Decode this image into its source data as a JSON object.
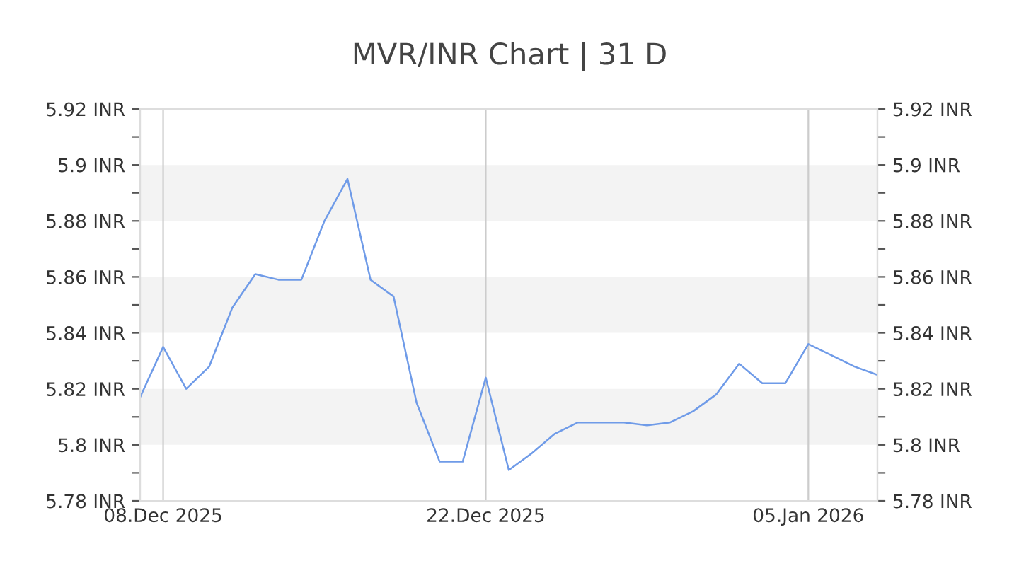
{
  "chart_data": {
    "type": "line",
    "title": "MVR/INR Chart | 31 D",
    "x": [
      "2025-12-07",
      "2025-12-08",
      "2025-12-09",
      "2025-12-10",
      "2025-12-11",
      "2025-12-12",
      "2025-12-13",
      "2025-12-14",
      "2025-12-15",
      "2025-12-16",
      "2025-12-17",
      "2025-12-18",
      "2025-12-19",
      "2025-12-20",
      "2025-12-21",
      "2025-12-22",
      "2025-12-23",
      "2025-12-24",
      "2025-12-25",
      "2025-12-26",
      "2025-12-27",
      "2025-12-28",
      "2025-12-29",
      "2025-12-30",
      "2025-12-31",
      "2026-01-01",
      "2026-01-02",
      "2026-01-03",
      "2026-01-04",
      "2026-01-05",
      "2026-01-06",
      "2026-01-07",
      "2026-01-08"
    ],
    "series": [
      {
        "color": "#6f9be8",
        "values": [
          5.817,
          5.835,
          5.82,
          5.828,
          5.849,
          5.861,
          5.859,
          5.859,
          5.88,
          5.895,
          5.859,
          5.853,
          5.815,
          5.794,
          5.794,
          5.824,
          5.791,
          5.797,
          5.804,
          5.808,
          5.808,
          5.808,
          5.807,
          5.808,
          5.812,
          5.818,
          5.829,
          5.822,
          5.822,
          5.836,
          5.832,
          5.828,
          5.825
        ]
      }
    ],
    "xlim": [
      "2025-12-07",
      "2026-01-08"
    ],
    "xticks": [
      {
        "value": "2025-12-08",
        "label": "08.Dec 2025"
      },
      {
        "value": "2025-12-22",
        "label": "22.Dec 2025"
      },
      {
        "value": "2026-01-05",
        "label": "05.Jan 2026"
      }
    ],
    "ylim": [
      5.78,
      5.92
    ],
    "yticks": [
      {
        "value": 5.78,
        "label": "5.78 INR"
      },
      {
        "value": 5.79,
        "label": null
      },
      {
        "value": 5.8,
        "label": "5.8 INR"
      },
      {
        "value": 5.81,
        "label": null
      },
      {
        "value": 5.82,
        "label": "5.82 INR"
      },
      {
        "value": 5.83,
        "label": null
      },
      {
        "value": 5.84,
        "label": "5.84 INR"
      },
      {
        "value": 5.85,
        "label": null
      },
      {
        "value": 5.86,
        "label": "5.86 INR"
      },
      {
        "value": 5.87,
        "label": null
      },
      {
        "value": 5.88,
        "label": "5.88 INR"
      },
      {
        "value": 5.89,
        "label": null
      },
      {
        "value": 5.9,
        "label": "5.9 INR"
      },
      {
        "value": 5.91,
        "label": null
      },
      {
        "value": 5.92,
        "label": "5.92 INR"
      }
    ],
    "y2lim": [
      5.78,
      5.92
    ],
    "y2ticks": [
      {
        "value": 5.78,
        "label": "5.78 INR"
      },
      {
        "value": 5.79,
        "label": null
      },
      {
        "value": 5.8,
        "label": "5.8 INR"
      },
      {
        "value": 5.81,
        "label": null
      },
      {
        "value": 5.82,
        "label": "5.82 INR"
      },
      {
        "value": 5.83,
        "label": null
      },
      {
        "value": 5.84,
        "label": "5.84 INR"
      },
      {
        "value": 5.85,
        "label": null
      },
      {
        "value": 5.86,
        "label": "5.86 INR"
      },
      {
        "value": 5.87,
        "label": null
      },
      {
        "value": 5.88,
        "label": "5.88 INR"
      },
      {
        "value": 5.89,
        "label": null
      },
      {
        "value": 5.9,
        "label": "5.9 INR"
      },
      {
        "value": 5.91,
        "label": null
      },
      {
        "value": 5.92,
        "label": "5.92 INR"
      }
    ],
    "bands": [
      {
        "axis": "y",
        "from": 5.8,
        "to": 5.82,
        "color": "#f3f3f3"
      },
      {
        "axis": "y",
        "from": 5.84,
        "to": 5.86,
        "color": "#f3f3f3"
      },
      {
        "axis": "y",
        "from": 5.88,
        "to": 5.9,
        "color": "#f3f3f3"
      }
    ],
    "grid": "x",
    "marker": "none",
    "line_style": "solid"
  }
}
